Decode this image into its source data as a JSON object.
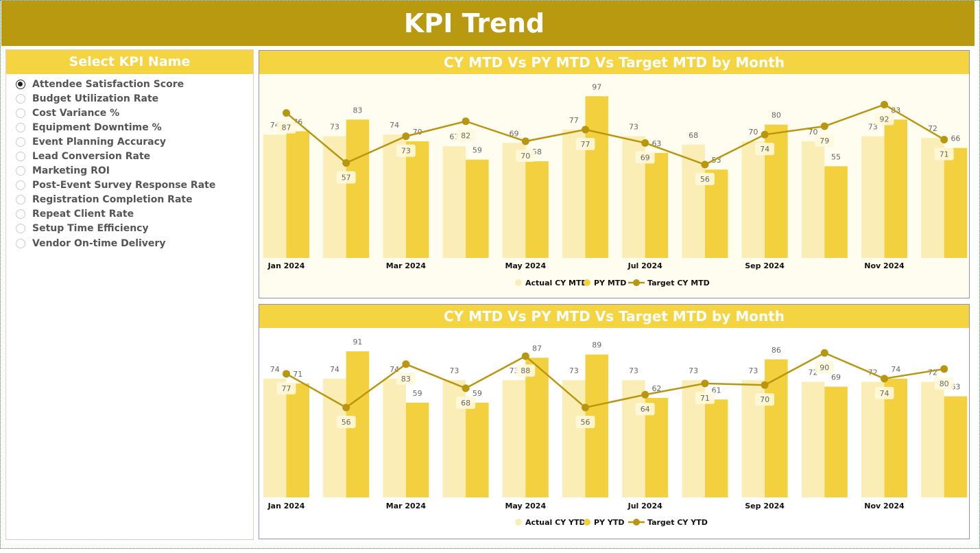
{
  "header": {
    "title": "KPI Trend"
  },
  "slicer": {
    "title": "Select KPI Name",
    "selected_index": 0,
    "items": [
      "Attendee Satisfaction Score",
      "Budget Utilization Rate",
      "Cost Variance %",
      "Equipment Downtime %",
      "Event Planning Accuracy",
      "Lead Conversion Rate",
      "Marketing ROI",
      "Post-Event Survey Response Rate",
      "Registration Completion Rate",
      "Repeat Client Rate",
      "Setup Time Efficiency",
      "Vendor On-time Delivery"
    ]
  },
  "colors": {
    "header": "#b8990f",
    "title_bar": "#f5d442",
    "actual": "#faedb5",
    "py": "#f3d03e",
    "target": "#b8960f"
  },
  "chart_data": [
    {
      "type": "bar+line",
      "title": "CY MTD Vs PY MTD Vs Target MTD by Month",
      "x_tick_labels": [
        "Jan 2024",
        "Mar 2024",
        "May 2024",
        "Jul 2024",
        "Sep 2024",
        "Nov 2024"
      ],
      "ylim": [
        0,
        100
      ],
      "legend": "bottom-center",
      "grid": false,
      "series": [
        {
          "name": "Actual CY MTD",
          "type": "bar",
          "values": [
            74,
            73,
            74,
            67,
            69,
            77,
            73,
            68,
            70,
            70,
            73,
            72
          ]
        },
        {
          "name": "PY MTD",
          "type": "bar",
          "values": [
            76,
            83,
            70,
            59,
            58,
            97,
            63,
            53,
            80,
            55,
            83,
            66
          ]
        },
        {
          "name": "Target CY MTD",
          "type": "line",
          "values": [
            87,
            57,
            73,
            82,
            70,
            77,
            69,
            56,
            74,
            79,
            92,
            71
          ]
        }
      ]
    },
    {
      "type": "bar+line",
      "title": "CY MTD Vs PY MTD Vs Target MTD by Month",
      "x_tick_labels": [
        "Jan 2024",
        "Mar 2024",
        "May 2024",
        "Jul 2024",
        "Sep 2024",
        "Nov 2024"
      ],
      "ylim": [
        0,
        100
      ],
      "legend": "bottom-center",
      "grid": false,
      "series": [
        {
          "name": "Actual CY YTD",
          "type": "bar",
          "values": [
            74,
            74,
            74,
            73,
            73,
            73,
            73,
            73,
            73,
            72,
            72,
            72
          ]
        },
        {
          "name": "PY YTD",
          "type": "bar",
          "values": [
            71,
            91,
            59,
            59,
            87,
            89,
            62,
            61,
            86,
            69,
            74,
            63
          ]
        },
        {
          "name": "Target CY YTD",
          "type": "line",
          "values": [
            77,
            56,
            83,
            68,
            88,
            56,
            64,
            71,
            70,
            90,
            74,
            80
          ]
        }
      ]
    }
  ]
}
